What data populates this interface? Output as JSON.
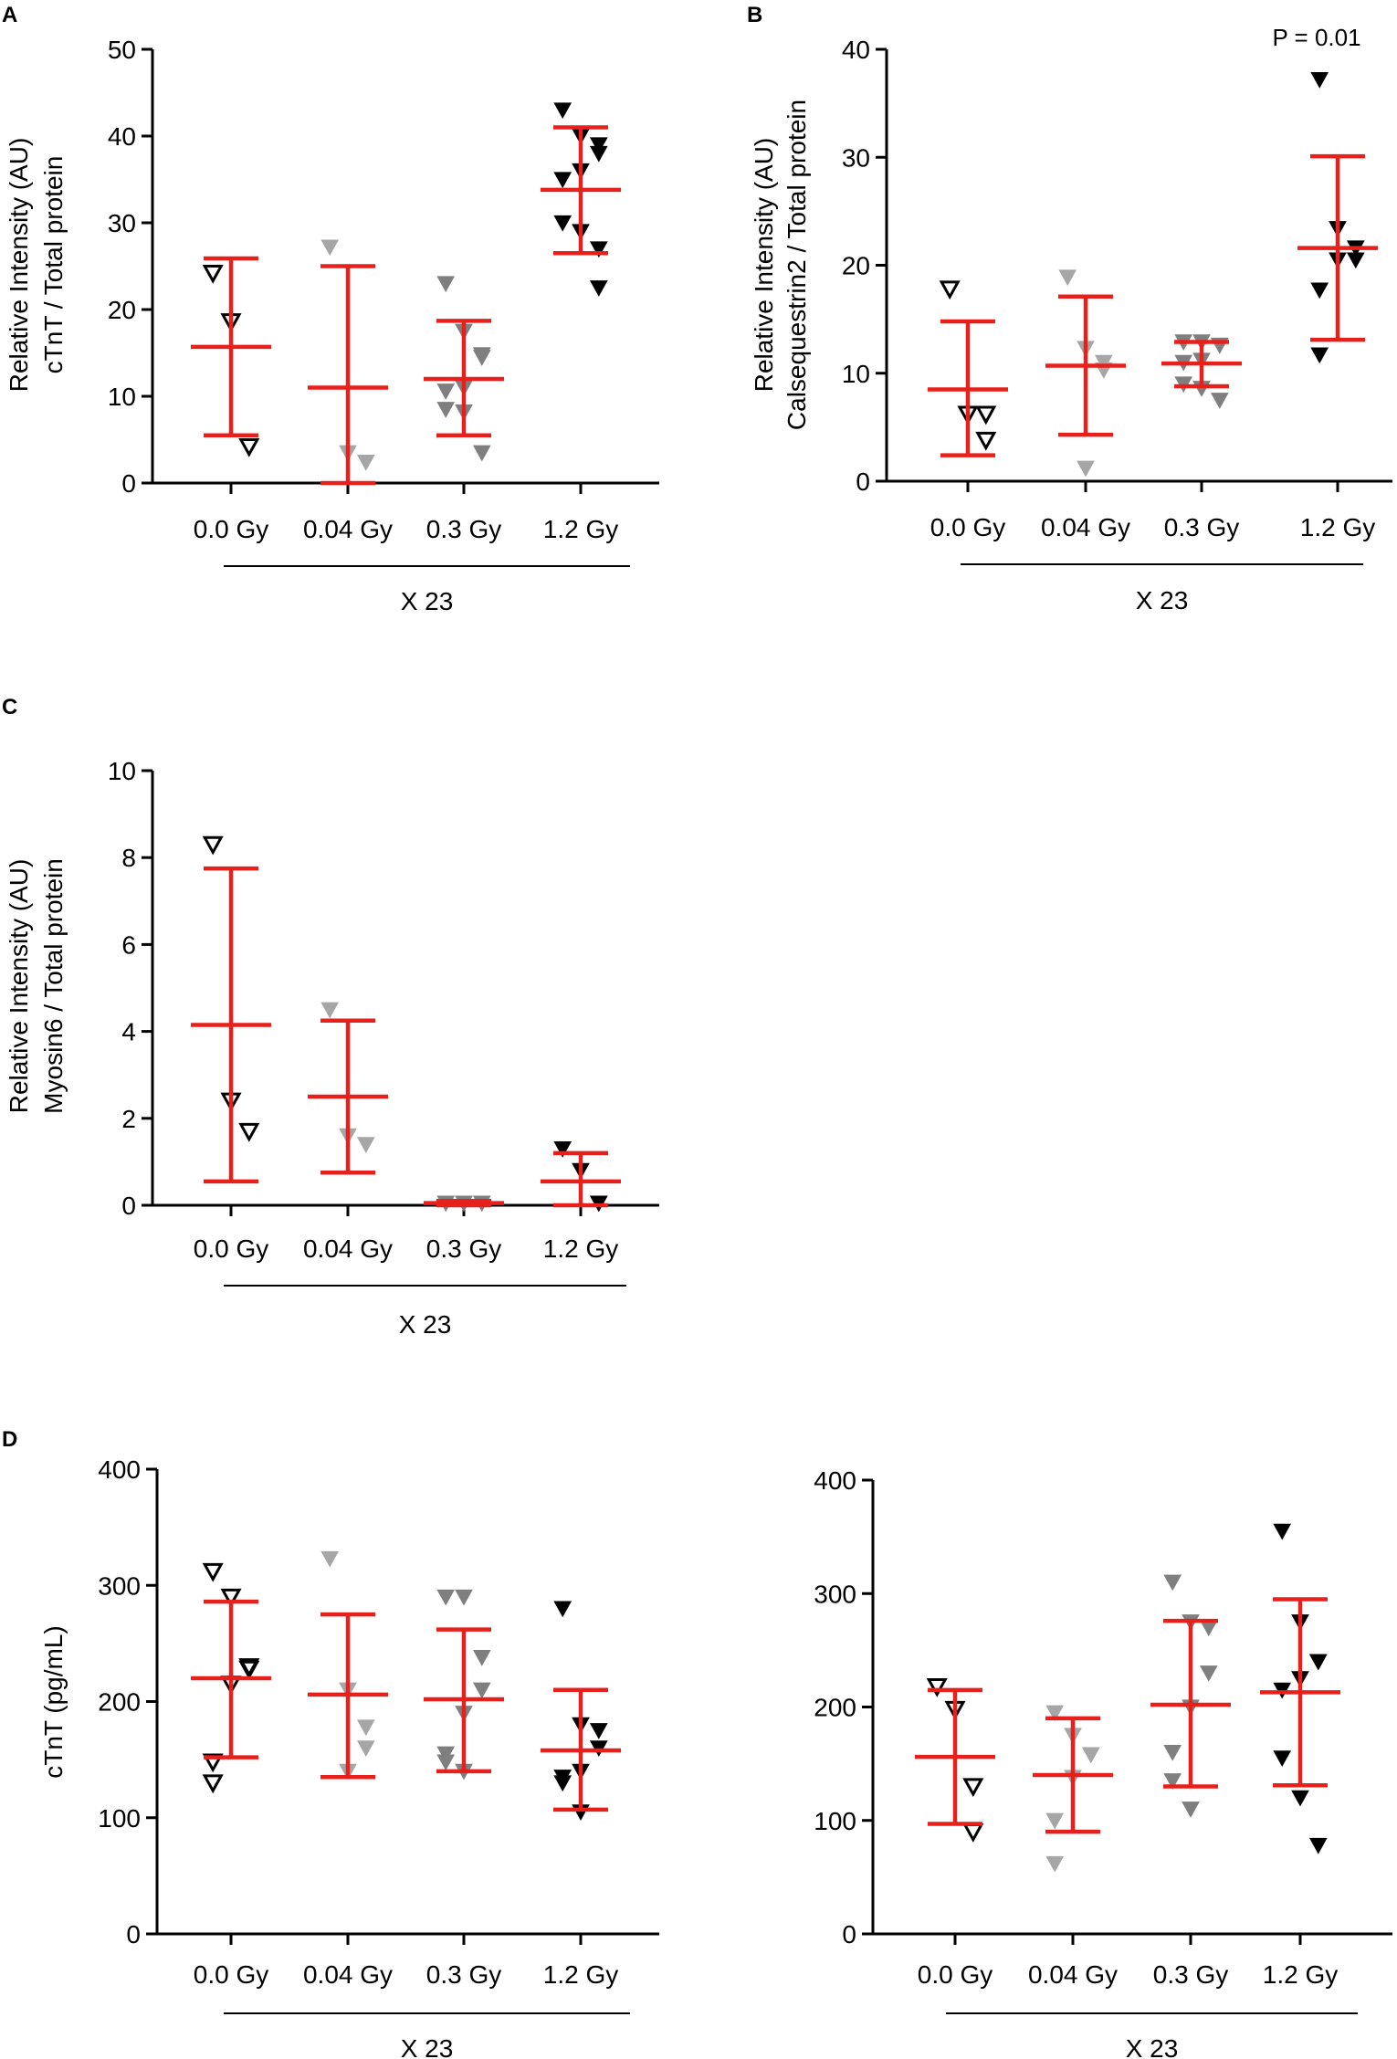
{
  "colors": {
    "mean_sd": "#e8201c",
    "axis": "#000000",
    "group_markers": [
      "#000000",
      "#a6a6a6",
      "#7f7f7f",
      "#000000"
    ],
    "group_fill": [
      "none",
      "#a6a6a6",
      "#7f7f7f",
      "#000000"
    ]
  },
  "marker_icon": "triangle-down",
  "chart_data": [
    {
      "panel": "A",
      "type": "scatter",
      "ylabel": [
        "Relative Intensity (AU)",
        "cTnT / Total protein"
      ],
      "xlabel": "X 23",
      "categories": [
        "0.0 Gy",
        "0.04 Gy",
        "0.3 Gy",
        "1.2 Gy"
      ],
      "ylim": [
        0,
        50
      ],
      "yticks": [
        0,
        10,
        20,
        30,
        40,
        50
      ],
      "ytick_labels": [
        "0",
        "10",
        "20",
        "30",
        "40",
        "50"
      ],
      "annotation": "",
      "groups": [
        {
          "points": [
            24.2,
            18.6,
            4.2
          ],
          "mean": 15.7,
          "sd_low": 5.5,
          "sd_high": 25.9
        },
        {
          "points": [
            27.2,
            3.5,
            2.4
          ],
          "mean": 11.0,
          "sd_low": 0.0,
          "sd_high": 25.0
        },
        {
          "points": [
            23.0,
            17.5,
            14.8,
            14.5,
            11.0,
            10.6,
            8.5,
            8.2,
            3.5
          ],
          "mean": 12.0,
          "sd_low": 5.5,
          "sd_high": 18.7
        },
        {
          "points": [
            43.0,
            40.0,
            39.0,
            38.0,
            36.0,
            35.0,
            30.0,
            29.0,
            27.0,
            22.5
          ],
          "mean": 33.8,
          "sd_low": 26.5,
          "sd_high": 41.0
        }
      ]
    },
    {
      "panel": "B",
      "type": "scatter",
      "ylabel": [
        "Relative Intensity (AU)",
        "Calsequestrin2 / Total protein"
      ],
      "xlabel": "X 23",
      "categories": [
        "0.0 Gy",
        "0.04 Gy",
        "0.3 Gy",
        "1.2 Gy"
      ],
      "ylim": [
        0,
        40
      ],
      "yticks": [
        0,
        10,
        20,
        30,
        40
      ],
      "ytick_labels": [
        "0",
        "10",
        "20",
        "30",
        "40"
      ],
      "annotation": "P = 0.01",
      "groups": [
        {
          "points": [
            17.8,
            6.2,
            6.2,
            3.8
          ],
          "mean": 8.5,
          "sd_low": 2.4,
          "sd_high": 14.8
        },
        {
          "points": [
            18.9,
            12.3,
            11.0,
            10.3,
            1.2
          ],
          "mean": 10.7,
          "sd_low": 4.3,
          "sd_high": 17.1
        },
        {
          "points": [
            12.9,
            12.9,
            12.6,
            12.6,
            11.2,
            11.0,
            9.0,
            8.6,
            7.5
          ],
          "mean": 10.9,
          "sd_low": 8.8,
          "sd_high": 12.9
        },
        {
          "points": [
            37.2,
            23.4,
            21.6,
            20.5,
            20.5,
            17.7,
            11.7
          ],
          "mean": 21.6,
          "sd_low": 13.1,
          "sd_high": 30.1
        }
      ]
    },
    {
      "panel": "C",
      "type": "scatter",
      "ylabel": [
        "Relative Intensity (AU)",
        "Myosin6 / Total protein"
      ],
      "xlabel": "X 23",
      "categories": [
        "0.0 Gy",
        "0.04 Gy",
        "0.3 Gy",
        "1.2 Gy"
      ],
      "ylim": [
        0,
        10
      ],
      "yticks": [
        0,
        2,
        4,
        6,
        8,
        10
      ],
      "ytick_labels": [
        "0",
        "2",
        "4",
        "6",
        "8",
        "10"
      ],
      "annotation": "",
      "groups": [
        {
          "points": [
            8.3,
            2.4,
            1.7
          ],
          "mean": 4.15,
          "sd_low": 0.55,
          "sd_high": 7.75
        },
        {
          "points": [
            4.5,
            1.6,
            1.4
          ],
          "mean": 2.5,
          "sd_low": 0.75,
          "sd_high": 4.25
        },
        {
          "points": [
            0.05,
            0.05,
            0.05
          ],
          "mean": 0.05,
          "sd_low": 0.0,
          "sd_high": 0.1
        },
        {
          "points": [
            1.3,
            0.8,
            0.05,
            0.05
          ],
          "mean": 0.55,
          "sd_low": 0.0,
          "sd_high": 1.2
        }
      ]
    },
    {
      "panel": "D",
      "type": "scatter",
      "ylabel": [
        "cTnT (pg/mL)"
      ],
      "xlabel": "X 23",
      "categories": [
        "0.0 Gy",
        "0.04 Gy",
        "0.3 Gy",
        "1.2 Gy"
      ],
      "ylim": [
        0,
        400
      ],
      "yticks": [
        0,
        100,
        200,
        300,
        400
      ],
      "ytick_labels": [
        "0",
        "100",
        "200",
        "300",
        "400"
      ],
      "annotation": "",
      "groups": [
        {
          "points": [
            312,
            290,
            230,
            228,
            215,
            148,
            130
          ],
          "mean": 220,
          "sd_low": 152,
          "sd_high": 286
        },
        {
          "points": [
            323,
            210,
            178,
            160,
            140
          ],
          "mean": 206,
          "sd_low": 135,
          "sd_high": 275
        },
        {
          "points": [
            290,
            290,
            238,
            210,
            190,
            155,
            148,
            140
          ],
          "mean": 202,
          "sd_low": 140,
          "sd_high": 262
        },
        {
          "points": [
            280,
            180,
            175,
            160,
            140,
            135,
            130,
            105
          ],
          "mean": 158,
          "sd_low": 107,
          "sd_high": 210
        }
      ]
    },
    {
      "panel": "",
      "type": "scatter",
      "ylabel": [],
      "xlabel": "X 23",
      "categories": [
        "0.0 Gy",
        "0.04 Gy",
        "0.3 Gy",
        "1.2 Gy"
      ],
      "ylim": [
        0,
        400
      ],
      "yticks": [
        0,
        100,
        200,
        300,
        400
      ],
      "ytick_labels": [
        "0",
        "100",
        "200",
        "300",
        "400"
      ],
      "annotation": "",
      "groups": [
        {
          "points": [
            218,
            198,
            130,
            90
          ],
          "mean": 156,
          "sd_low": 97,
          "sd_high": 215
        },
        {
          "points": [
            195,
            175,
            158,
            158,
            138,
            100,
            62
          ],
          "mean": 140,
          "sd_low": 90,
          "sd_high": 190
        },
        {
          "points": [
            310,
            275,
            270,
            230,
            200,
            160,
            135,
            110
          ],
          "mean": 202,
          "sd_low": 130,
          "sd_high": 276
        },
        {
          "points": [
            355,
            275,
            240,
            240,
            225,
            215,
            155,
            120,
            78
          ],
          "mean": 213,
          "sd_low": 131,
          "sd_high": 295
        }
      ]
    }
  ]
}
